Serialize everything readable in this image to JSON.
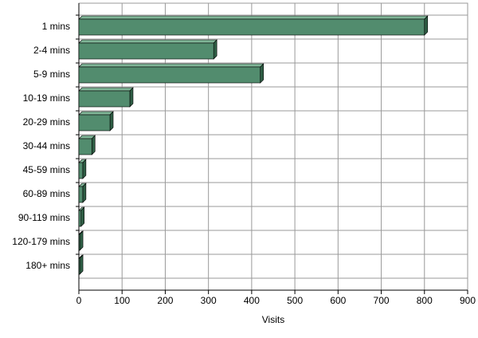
{
  "chart_data": {
    "type": "bar",
    "orientation": "horizontal",
    "categories": [
      "1 mins",
      "2-4 mins",
      "5-9 mins",
      "10-19 mins",
      "20-29 mins",
      "30-44 mins",
      "45-59 mins",
      "60-89 mins",
      "90-119 mins",
      "120-179 mins",
      "180+ mins"
    ],
    "values": [
      800,
      312,
      420,
      118,
      72,
      30,
      9,
      9,
      5,
      2,
      2
    ],
    "color": "#528c6e",
    "x_label": "Visits",
    "xlim": [
      0,
      900
    ],
    "xticks": [
      0,
      100,
      200,
      300,
      400,
      500,
      600,
      700,
      800,
      900
    ],
    "grid": true
  }
}
